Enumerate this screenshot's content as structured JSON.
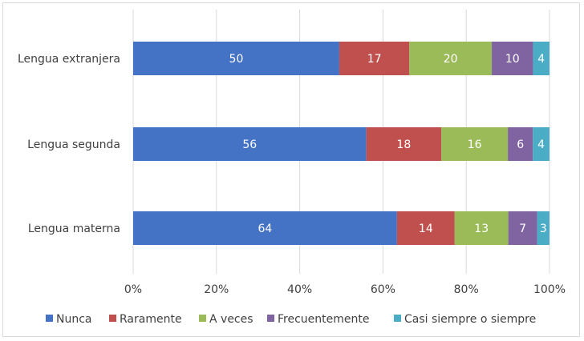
{
  "chart_data": {
    "type": "bar",
    "orientation": "horizontal",
    "stacked": "percent",
    "title": "",
    "xlabel": "",
    "ylabel": "",
    "categories": [
      "Lengua extranjera",
      "Lengua segunda",
      "Lengua materna"
    ],
    "series": [
      {
        "name": "Nunca",
        "color": "#4472C4",
        "values": [
          50,
          56,
          64
        ]
      },
      {
        "name": "Raramente",
        "color": "#C0504D",
        "values": [
          17,
          18,
          14
        ]
      },
      {
        "name": "A veces",
        "color": "#9BBB59",
        "values": [
          20,
          16,
          13
        ]
      },
      {
        "name": "Frecuentemente",
        "color": "#8064A2",
        "values": [
          10,
          6,
          7
        ]
      },
      {
        "name": "Casi siempre o siempre",
        "color": "#4BACC6",
        "values": [
          4,
          4,
          3
        ]
      }
    ],
    "xlim": [
      0,
      100
    ],
    "x_ticks": [
      "0%",
      "20%",
      "40%",
      "60%",
      "80%",
      "100%"
    ],
    "grid": true,
    "legend": "bottom",
    "data_labels": true
  }
}
